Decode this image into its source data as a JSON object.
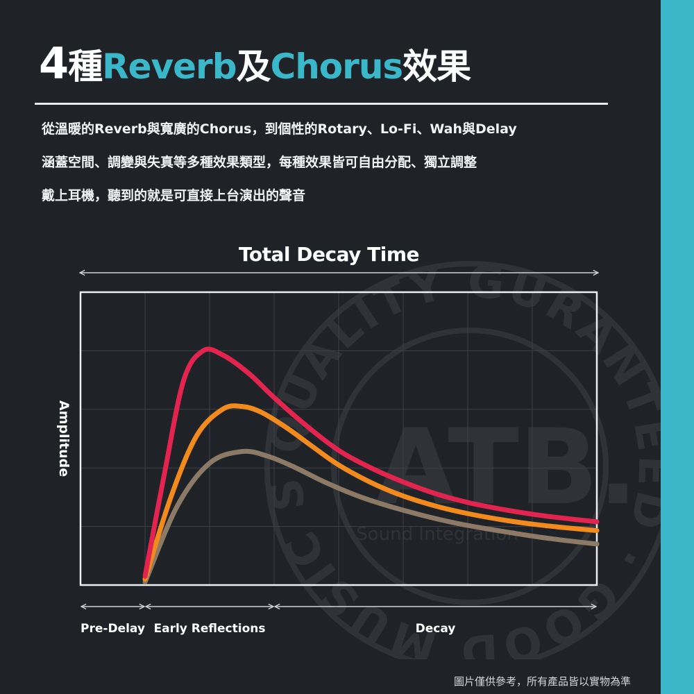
{
  "headline": {
    "number": "4",
    "part1": "種",
    "reverb": "Reverb",
    "part2": "及",
    "chorus": "Chorus",
    "part3": "效果"
  },
  "description": [
    "從溫暖的Reverb與寬廣的Chorus，到個性的Rotary、Lo-Fi、Wah與Delay",
    "涵蓋空間、調變與失真等多種效果類型，每種效果皆可自由分配、獨立調整",
    "戴上耳機，聽到的就是可直接上台演出的聲音"
  ],
  "chart_data": {
    "type": "line",
    "title": "Total Decay Time",
    "xlabel": "",
    "ylabel": "Amplitude",
    "xlim": [
      0,
      8
    ],
    "ylim": [
      0,
      5
    ],
    "grid": true,
    "legend": "none",
    "segments": [
      {
        "label": "Pre-Delay",
        "from": 0,
        "to": 1
      },
      {
        "label": "Early Reflections",
        "from": 1,
        "to": 3
      },
      {
        "label": "Decay",
        "from": 3,
        "to": 8
      }
    ],
    "series": [
      {
        "color": "#e2244f",
        "x": [
          1.0,
          1.3,
          1.6,
          1.9,
          2.2,
          2.6,
          3.0,
          3.5,
          4.0,
          4.5,
          5.0,
          5.5,
          6.0,
          6.5,
          7.0,
          7.5,
          8.0
        ],
        "y": [
          0.15,
          1.9,
          3.5,
          4.0,
          3.93,
          3.62,
          3.2,
          2.72,
          2.3,
          2.0,
          1.76,
          1.56,
          1.41,
          1.3,
          1.21,
          1.14,
          1.08
        ]
      },
      {
        "color": "#f28a1e",
        "x": [
          1.0,
          1.4,
          1.8,
          2.2,
          2.5,
          2.8,
          3.2,
          3.6,
          4.0,
          4.5,
          5.0,
          5.5,
          6.0,
          6.5,
          7.0,
          7.5,
          8.0
        ],
        "y": [
          0.1,
          1.5,
          2.55,
          3.0,
          3.05,
          2.95,
          2.68,
          2.36,
          2.05,
          1.75,
          1.52,
          1.35,
          1.22,
          1.12,
          1.04,
          0.98,
          0.93
        ]
      },
      {
        "color": "#8c7a66",
        "x": [
          1.0,
          1.5,
          2.0,
          2.5,
          2.9,
          3.3,
          3.8,
          4.3,
          4.8,
          5.3,
          5.8,
          6.3,
          6.8,
          7.3,
          8.0
        ],
        "y": [
          0.05,
          1.35,
          2.08,
          2.28,
          2.2,
          2.02,
          1.75,
          1.52,
          1.34,
          1.19,
          1.06,
          0.96,
          0.87,
          0.79,
          0.7
        ]
      }
    ]
  },
  "watermark": {
    "ring": "QUALITY GURANTEED · GOOD MUSIC SHOP",
    "brand": "ATB.",
    "tagline": "Sound Integration"
  },
  "footnote": "圖片僅供參考，所有產品皆以實物為準"
}
